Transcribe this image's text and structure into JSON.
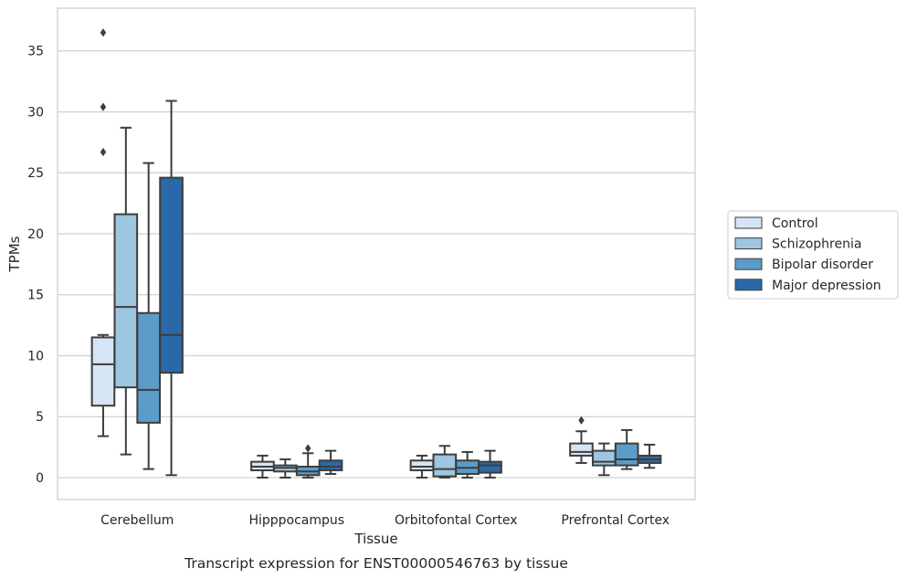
{
  "chart_data": {
    "type": "box",
    "xlabel": "Tissue",
    "ylabel": "TPMs",
    "caption": "Transcript expression for ENST00000546763 by tissue",
    "categories": [
      "Cerebellum",
      "Hipppocampus",
      "Orbitofontal Cortex",
      "Prefrontal Cortex"
    ],
    "yticks": [
      "0",
      "5",
      "10",
      "15",
      "20",
      "25",
      "30",
      "35"
    ],
    "ylim": [
      -1.8,
      38.5
    ],
    "grid": "horizontal",
    "legend_position": "right",
    "series": [
      {
        "name": "Control",
        "color": "#d6e5f4",
        "boxes": [
          {
            "min": 3.4,
            "q1": 5.9,
            "median": 9.3,
            "q3": 11.5,
            "max": 11.7,
            "outliers": [
              26.7,
              30.4,
              36.5
            ]
          },
          {
            "min": 0.0,
            "q1": 0.6,
            "median": 0.9,
            "q3": 1.3,
            "max": 1.8,
            "outliers": []
          },
          {
            "min": 0.0,
            "q1": 0.6,
            "median": 0.9,
            "q3": 1.4,
            "max": 1.8,
            "outliers": []
          },
          {
            "min": 1.2,
            "q1": 1.8,
            "median": 2.1,
            "q3": 2.8,
            "max": 3.8,
            "outliers": [
              4.7
            ]
          }
        ]
      },
      {
        "name": "Schizophrenia",
        "color": "#9dc6e0",
        "boxes": [
          {
            "min": 1.9,
            "q1": 7.4,
            "median": 14.0,
            "q3": 21.6,
            "max": 28.7,
            "outliers": []
          },
          {
            "min": 0.0,
            "q1": 0.5,
            "median": 0.8,
            "q3": 1.0,
            "max": 1.5,
            "outliers": []
          },
          {
            "min": 0.0,
            "q1": 0.1,
            "median": 0.7,
            "q3": 1.9,
            "max": 2.6,
            "outliers": []
          },
          {
            "min": 0.2,
            "q1": 1.0,
            "median": 1.3,
            "q3": 2.2,
            "max": 2.8,
            "outliers": []
          }
        ]
      },
      {
        "name": "Bipolar disorder",
        "color": "#5b9cc9",
        "boxes": [
          {
            "min": 0.7,
            "q1": 4.5,
            "median": 7.2,
            "q3": 13.5,
            "max": 25.8,
            "outliers": []
          },
          {
            "min": 0.0,
            "q1": 0.2,
            "median": 0.5,
            "q3": 0.9,
            "max": 2.0,
            "outliers": [
              2.4
            ]
          },
          {
            "min": 0.0,
            "q1": 0.3,
            "median": 0.8,
            "q3": 1.4,
            "max": 2.1,
            "outliers": []
          },
          {
            "min": 0.7,
            "q1": 1.0,
            "median": 1.5,
            "q3": 2.8,
            "max": 3.9,
            "outliers": []
          }
        ]
      },
      {
        "name": "Major depression",
        "color": "#2a69a7",
        "boxes": [
          {
            "min": 0.2,
            "q1": 8.6,
            "median": 11.7,
            "q3": 24.6,
            "max": 30.9,
            "outliers": []
          },
          {
            "min": 0.3,
            "q1": 0.6,
            "median": 0.9,
            "q3": 1.4,
            "max": 2.2,
            "outliers": []
          },
          {
            "min": 0.0,
            "q1": 0.4,
            "median": 1.0,
            "q3": 1.3,
            "max": 2.2,
            "outliers": []
          },
          {
            "min": 0.8,
            "q1": 1.2,
            "median": 1.5,
            "q3": 1.8,
            "max": 2.7,
            "outliers": []
          }
        ]
      }
    ]
  }
}
